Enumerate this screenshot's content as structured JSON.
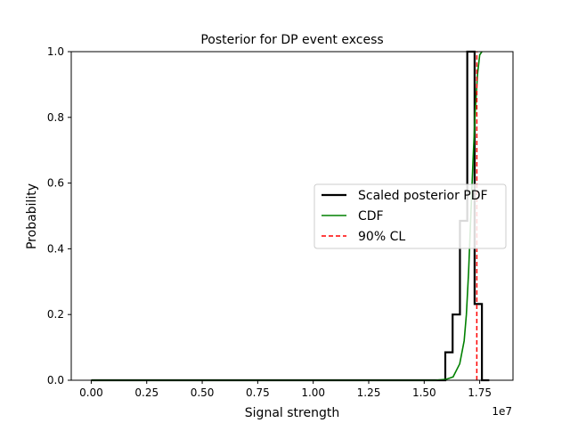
{
  "chart_data": {
    "type": "line",
    "title": "Posterior for DP event excess",
    "xlabel": "Signal strength",
    "ylabel": "Probability",
    "x_offset_label": "1e7",
    "xlim": [
      -0.09,
      1.9
    ],
    "ylim": [
      0.0,
      1.0
    ],
    "x_ticks": [
      0.0,
      0.25,
      0.5,
      0.75,
      1.0,
      1.25,
      1.5,
      1.75
    ],
    "x_tick_labels": [
      "0.00",
      "0.25",
      "0.50",
      "0.75",
      "1.00",
      "1.25",
      "1.50",
      "1.75"
    ],
    "y_ticks": [
      0.0,
      0.2,
      0.4,
      0.6,
      0.8,
      1.0
    ],
    "y_tick_labels": [
      "0.0",
      "0.2",
      "0.4",
      "0.6",
      "0.8",
      "1.0"
    ],
    "grid": false,
    "legend_position": "center-right",
    "series": [
      {
        "name": "Scaled posterior PDF",
        "kind": "step-histogram",
        "color": "#000000",
        "bin_edges": [
          0.0,
          1.595,
          1.628,
          1.661,
          1.694,
          1.727,
          1.76,
          1.793
        ],
        "values": [
          0.0,
          0.085,
          0.2,
          0.485,
          1.0,
          0.232,
          0.0
        ]
      },
      {
        "name": "CDF",
        "kind": "line",
        "color": "#008000",
        "x": [
          0.0,
          1.5,
          1.55,
          1.6,
          1.63,
          1.66,
          1.68,
          1.69,
          1.7,
          1.71,
          1.72,
          1.73,
          1.74,
          1.75,
          1.76
        ],
        "y": [
          0.0,
          0.0,
          0.0,
          0.003,
          0.01,
          0.05,
          0.12,
          0.2,
          0.33,
          0.5,
          0.67,
          0.82,
          0.93,
          0.99,
          1.0
        ]
      },
      {
        "name": "90% CL",
        "kind": "vertical-dashed",
        "color": "#ff0000",
        "x": 1.737,
        "y_range": [
          0.0,
          1.0
        ]
      }
    ]
  }
}
